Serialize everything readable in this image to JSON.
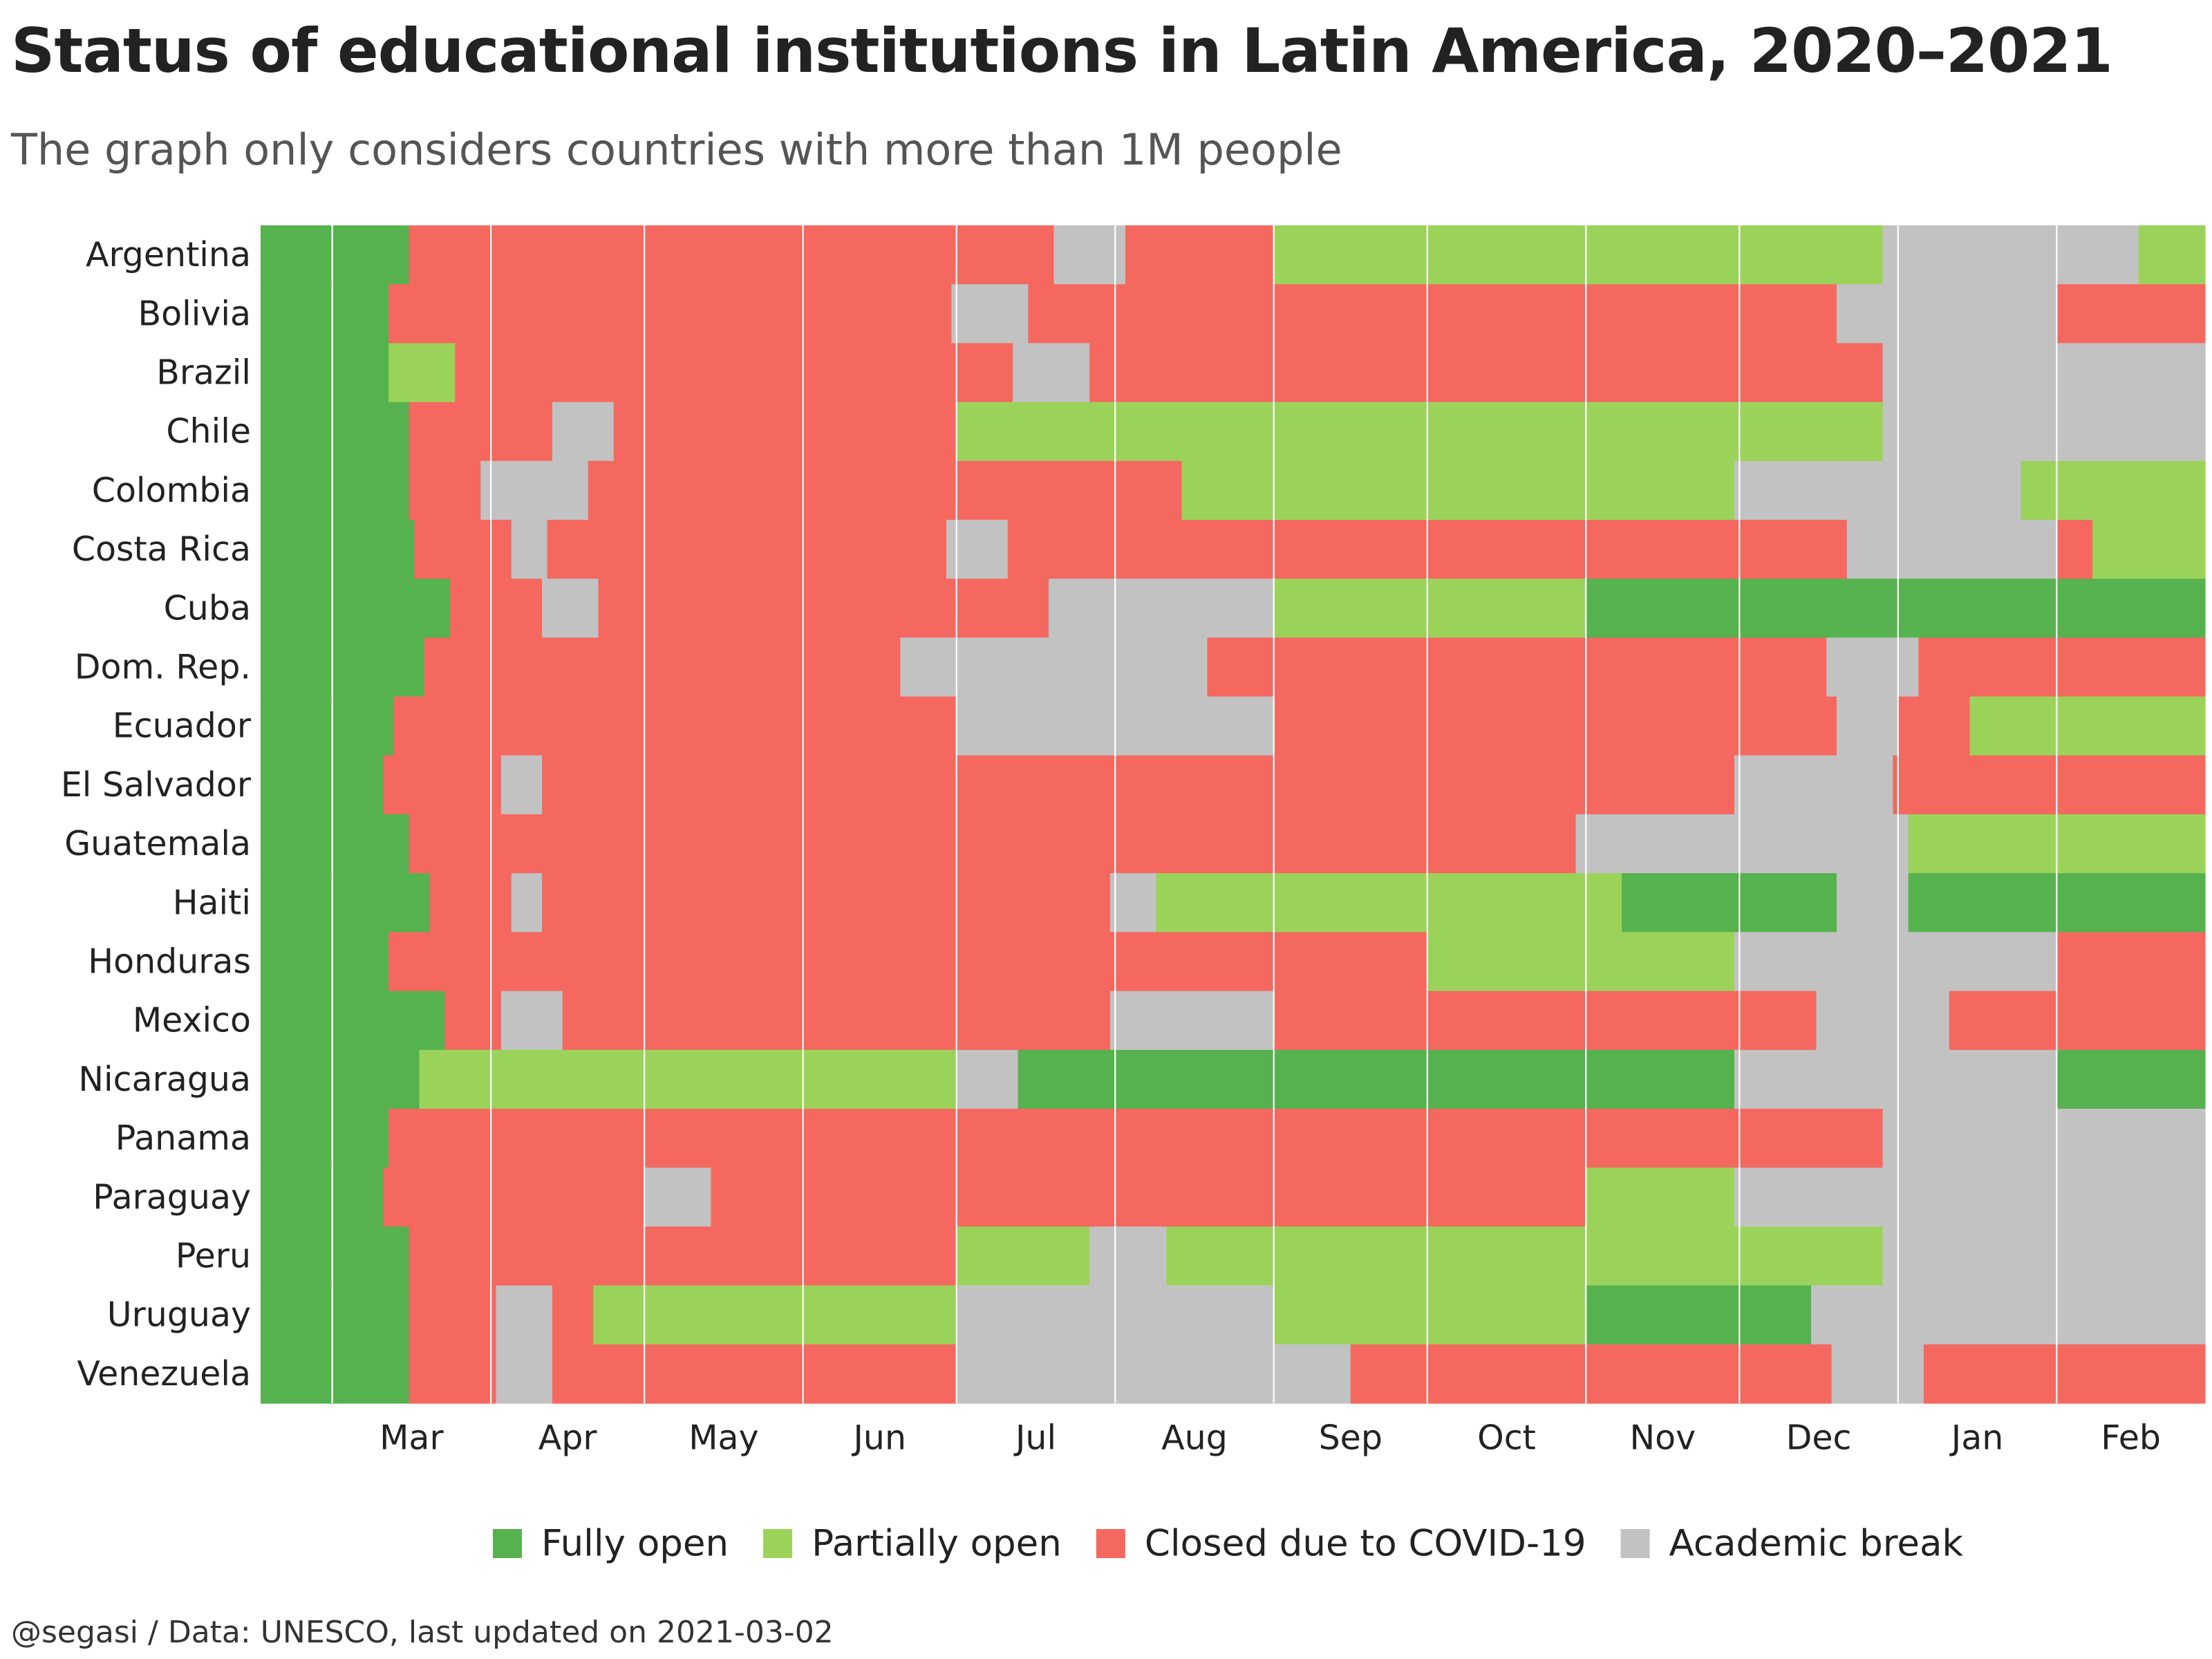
{
  "title": "Status of educational institutions in Latin America, 2020–2021",
  "subtitle": "The graph only considers countries with more than 1M people",
  "caption": "@segasi / Data: UNESCO, last updated on 2021-03-02",
  "chart_data": {
    "type": "heatmap",
    "x_start": "2020-02-16",
    "x_end": "2021-03-02",
    "month_ticks": [
      {
        "label": "Mar",
        "date": "2020-03-01"
      },
      {
        "label": "Apr",
        "date": "2020-04-01"
      },
      {
        "label": "May",
        "date": "2020-05-01"
      },
      {
        "label": "Jun",
        "date": "2020-06-01"
      },
      {
        "label": "Jul",
        "date": "2020-07-01"
      },
      {
        "label": "Aug",
        "date": "2020-08-01"
      },
      {
        "label": "Sep",
        "date": "2020-09-01"
      },
      {
        "label": "Oct",
        "date": "2020-10-01"
      },
      {
        "label": "Nov",
        "date": "2020-11-01"
      },
      {
        "label": "Dec",
        "date": "2020-12-01"
      },
      {
        "label": "Jan",
        "date": "2021-01-01"
      },
      {
        "label": "Feb",
        "date": "2021-02-01"
      }
    ],
    "categories": {
      "fully": {
        "label": "Fully open",
        "color": "#55B24E"
      },
      "partial": {
        "label": "Partially open",
        "color": "#9BD35A"
      },
      "closed": {
        "label": "Closed due to COVID-19",
        "color": "#F4685F"
      },
      "break": {
        "label": "Academic break",
        "color": "#C2C2C2"
      }
    },
    "legend_order": [
      "fully",
      "partial",
      "closed",
      "break"
    ],
    "legend_position": "bottom",
    "countries": [
      {
        "name": "Argentina",
        "periods": [
          {
            "start": "2020-02-16",
            "status": "fully"
          },
          {
            "start": "2020-03-16",
            "status": "closed"
          },
          {
            "start": "2020-07-20",
            "status": "break"
          },
          {
            "start": "2020-08-03",
            "status": "closed"
          },
          {
            "start": "2020-09-01",
            "status": "partial"
          },
          {
            "start": "2020-12-29",
            "status": "break"
          },
          {
            "start": "2021-02-17",
            "status": "partial"
          }
        ]
      },
      {
        "name": "Bolivia",
        "periods": [
          {
            "start": "2020-02-16",
            "status": "fully"
          },
          {
            "start": "2020-03-12",
            "status": "closed"
          },
          {
            "start": "2020-06-30",
            "status": "break"
          },
          {
            "start": "2020-07-15",
            "status": "closed"
          },
          {
            "start": "2020-12-20",
            "status": "break"
          },
          {
            "start": "2021-02-01",
            "status": "closed"
          }
        ]
      },
      {
        "name": "Brazil",
        "periods": [
          {
            "start": "2020-02-16",
            "status": "fully"
          },
          {
            "start": "2020-03-12",
            "status": "partial"
          },
          {
            "start": "2020-03-25",
            "status": "closed"
          },
          {
            "start": "2020-07-12",
            "status": "break"
          },
          {
            "start": "2020-07-27",
            "status": "closed"
          },
          {
            "start": "2020-12-29",
            "status": "break"
          }
        ]
      },
      {
        "name": "Chile",
        "periods": [
          {
            "start": "2020-02-16",
            "status": "fully"
          },
          {
            "start": "2020-03-16",
            "status": "closed"
          },
          {
            "start": "2020-04-13",
            "status": "break"
          },
          {
            "start": "2020-04-25",
            "status": "closed"
          },
          {
            "start": "2020-07-01",
            "status": "partial"
          },
          {
            "start": "2020-12-29",
            "status": "break"
          }
        ]
      },
      {
        "name": "Colombia",
        "periods": [
          {
            "start": "2020-02-16",
            "status": "fully"
          },
          {
            "start": "2020-03-16",
            "status": "closed"
          },
          {
            "start": "2020-03-30",
            "status": "break"
          },
          {
            "start": "2020-04-20",
            "status": "closed"
          },
          {
            "start": "2020-08-14",
            "status": "partial"
          },
          {
            "start": "2020-11-30",
            "status": "break"
          },
          {
            "start": "2021-01-25",
            "status": "partial"
          }
        ]
      },
      {
        "name": "Costa Rica",
        "periods": [
          {
            "start": "2020-02-16",
            "status": "fully"
          },
          {
            "start": "2020-03-17",
            "status": "closed"
          },
          {
            "start": "2020-04-05",
            "status": "break"
          },
          {
            "start": "2020-04-12",
            "status": "closed"
          },
          {
            "start": "2020-06-29",
            "status": "break"
          },
          {
            "start": "2020-07-11",
            "status": "closed"
          },
          {
            "start": "2020-12-22",
            "status": "break"
          },
          {
            "start": "2021-02-01",
            "status": "closed"
          },
          {
            "start": "2021-02-08",
            "status": "partial"
          }
        ]
      },
      {
        "name": "Cuba",
        "periods": [
          {
            "start": "2020-02-16",
            "status": "fully"
          },
          {
            "start": "2020-03-24",
            "status": "closed"
          },
          {
            "start": "2020-04-11",
            "status": "break"
          },
          {
            "start": "2020-04-22",
            "status": "closed"
          },
          {
            "start": "2020-07-19",
            "status": "break"
          },
          {
            "start": "2020-09-01",
            "status": "partial"
          },
          {
            "start": "2020-11-01",
            "status": "fully"
          }
        ]
      },
      {
        "name": "Dom. Rep.",
        "periods": [
          {
            "start": "2020-02-16",
            "status": "fully"
          },
          {
            "start": "2020-03-19",
            "status": "closed"
          },
          {
            "start": "2020-06-20",
            "status": "break"
          },
          {
            "start": "2020-08-19",
            "status": "closed"
          },
          {
            "start": "2020-12-18",
            "status": "break"
          },
          {
            "start": "2021-01-05",
            "status": "closed"
          }
        ]
      },
      {
        "name": "Ecuador",
        "periods": [
          {
            "start": "2020-02-16",
            "status": "fully"
          },
          {
            "start": "2020-03-13",
            "status": "closed"
          },
          {
            "start": "2020-07-01",
            "status": "break"
          },
          {
            "start": "2020-09-01",
            "status": "closed"
          },
          {
            "start": "2020-12-20",
            "status": "break"
          },
          {
            "start": "2021-01-01",
            "status": "closed"
          },
          {
            "start": "2021-01-15",
            "status": "partial"
          }
        ]
      },
      {
        "name": "El Salvador",
        "periods": [
          {
            "start": "2020-02-16",
            "status": "fully"
          },
          {
            "start": "2020-03-11",
            "status": "closed"
          },
          {
            "start": "2020-04-03",
            "status": "break"
          },
          {
            "start": "2020-04-11",
            "status": "closed"
          },
          {
            "start": "2020-11-30",
            "status": "break"
          },
          {
            "start": "2020-12-31",
            "status": "closed"
          }
        ]
      },
      {
        "name": "Guatemala",
        "periods": [
          {
            "start": "2020-02-16",
            "status": "fully"
          },
          {
            "start": "2020-03-16",
            "status": "closed"
          },
          {
            "start": "2020-10-30",
            "status": "break"
          },
          {
            "start": "2021-01-03",
            "status": "partial"
          }
        ]
      },
      {
        "name": "Haiti",
        "periods": [
          {
            "start": "2020-02-16",
            "status": "fully"
          },
          {
            "start": "2020-03-20",
            "status": "closed"
          },
          {
            "start": "2020-04-05",
            "status": "break"
          },
          {
            "start": "2020-04-11",
            "status": "closed"
          },
          {
            "start": "2020-07-31",
            "status": "break"
          },
          {
            "start": "2020-08-09",
            "status": "partial"
          },
          {
            "start": "2020-11-08",
            "status": "fully"
          },
          {
            "start": "2020-12-20",
            "status": "break"
          },
          {
            "start": "2021-01-03",
            "status": "fully"
          }
        ]
      },
      {
        "name": "Honduras",
        "periods": [
          {
            "start": "2020-02-16",
            "status": "fully"
          },
          {
            "start": "2020-03-12",
            "status": "closed"
          },
          {
            "start": "2020-10-01",
            "status": "partial"
          },
          {
            "start": "2020-11-30",
            "status": "break"
          },
          {
            "start": "2021-02-01",
            "status": "closed"
          }
        ]
      },
      {
        "name": "Mexico",
        "periods": [
          {
            "start": "2020-02-16",
            "status": "fully"
          },
          {
            "start": "2020-03-23",
            "status": "closed"
          },
          {
            "start": "2020-04-03",
            "status": "break"
          },
          {
            "start": "2020-04-15",
            "status": "closed"
          },
          {
            "start": "2020-07-31",
            "status": "break"
          },
          {
            "start": "2020-09-01",
            "status": "closed"
          },
          {
            "start": "2020-12-16",
            "status": "break"
          },
          {
            "start": "2021-01-11",
            "status": "closed"
          }
        ]
      },
      {
        "name": "Nicaragua",
        "periods": [
          {
            "start": "2020-02-16",
            "status": "fully"
          },
          {
            "start": "2020-03-18",
            "status": "partial"
          },
          {
            "start": "2020-07-01",
            "status": "break"
          },
          {
            "start": "2020-07-13",
            "status": "fully"
          },
          {
            "start": "2020-11-30",
            "status": "break"
          },
          {
            "start": "2021-02-01",
            "status": "fully"
          }
        ]
      },
      {
        "name": "Panama",
        "periods": [
          {
            "start": "2020-02-16",
            "status": "fully"
          },
          {
            "start": "2020-03-12",
            "status": "closed"
          },
          {
            "start": "2020-12-29",
            "status": "break"
          }
        ]
      },
      {
        "name": "Paraguay",
        "periods": [
          {
            "start": "2020-02-16",
            "status": "fully"
          },
          {
            "start": "2020-03-11",
            "status": "closed"
          },
          {
            "start": "2020-05-01",
            "status": "break"
          },
          {
            "start": "2020-05-14",
            "status": "closed"
          },
          {
            "start": "2020-11-01",
            "status": "partial"
          },
          {
            "start": "2020-11-30",
            "status": "break"
          }
        ]
      },
      {
        "name": "Peru",
        "periods": [
          {
            "start": "2020-02-16",
            "status": "fully"
          },
          {
            "start": "2020-03-16",
            "status": "closed"
          },
          {
            "start": "2020-07-01",
            "status": "partial"
          },
          {
            "start": "2020-07-27",
            "status": "break"
          },
          {
            "start": "2020-08-11",
            "status": "partial"
          },
          {
            "start": "2020-12-29",
            "status": "break"
          }
        ]
      },
      {
        "name": "Uruguay",
        "periods": [
          {
            "start": "2020-02-16",
            "status": "fully"
          },
          {
            "start": "2020-03-16",
            "status": "closed"
          },
          {
            "start": "2020-04-02",
            "status": "break"
          },
          {
            "start": "2020-04-13",
            "status": "closed"
          },
          {
            "start": "2020-04-21",
            "status": "partial"
          },
          {
            "start": "2020-07-01",
            "status": "break"
          },
          {
            "start": "2020-09-01",
            "status": "partial"
          },
          {
            "start": "2020-11-01",
            "status": "fully"
          },
          {
            "start": "2020-12-15",
            "status": "break"
          }
        ]
      },
      {
        "name": "Venezuela",
        "periods": [
          {
            "start": "2020-02-16",
            "status": "fully"
          },
          {
            "start": "2020-03-16",
            "status": "closed"
          },
          {
            "start": "2020-04-02",
            "status": "break"
          },
          {
            "start": "2020-04-13",
            "status": "closed"
          },
          {
            "start": "2020-07-01",
            "status": "break"
          },
          {
            "start": "2020-09-16",
            "status": "closed"
          },
          {
            "start": "2020-12-19",
            "status": "break"
          },
          {
            "start": "2021-01-06",
            "status": "closed"
          }
        ]
      }
    ]
  }
}
